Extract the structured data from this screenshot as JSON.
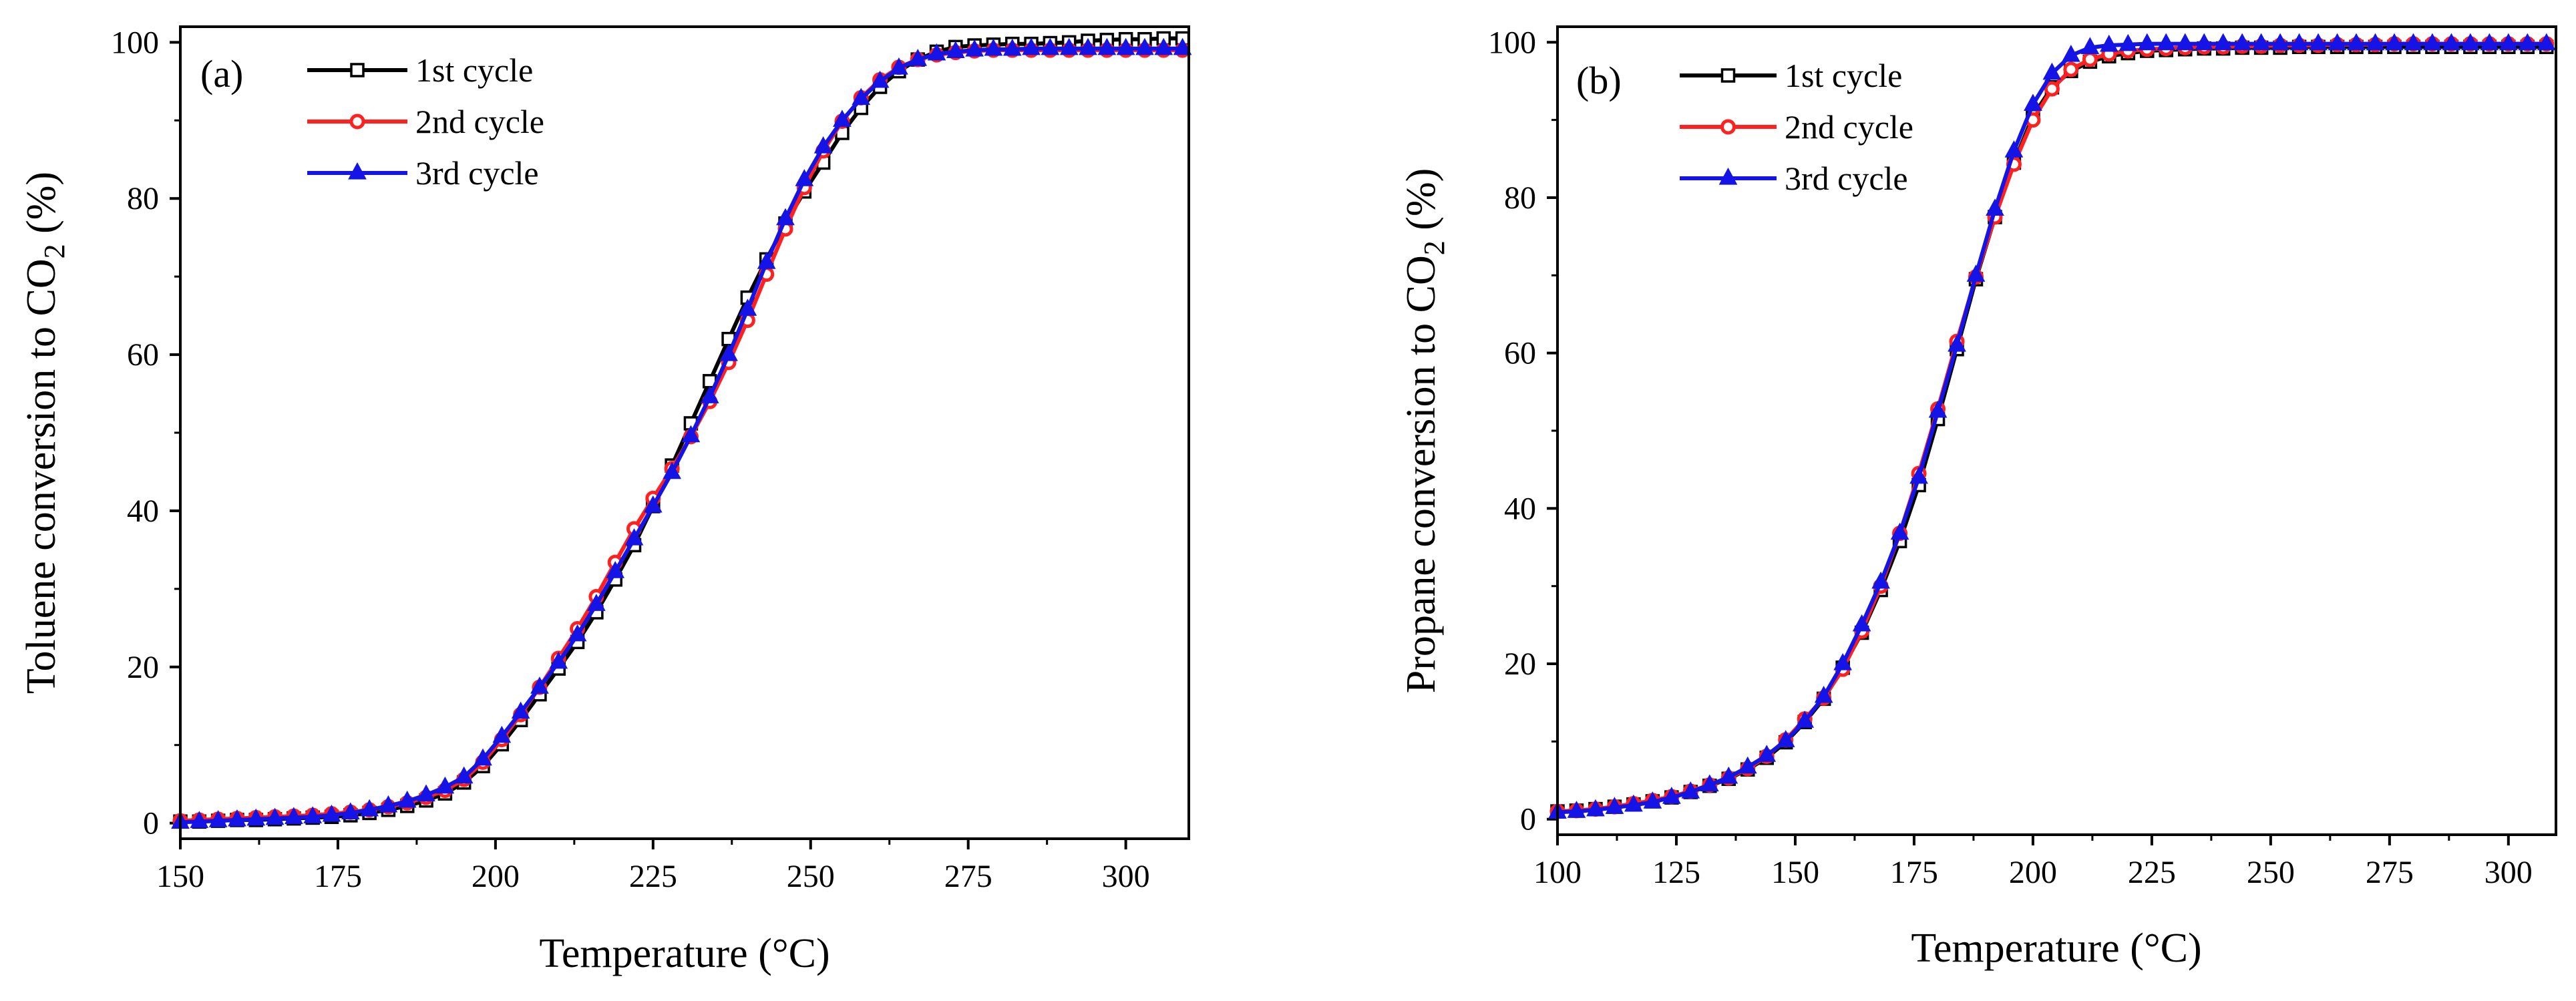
{
  "chart_data": [
    {
      "type": "line",
      "panel_label": "(a)",
      "xlabel": "Temperature (°C)",
      "ylabel_prefix": "Toluene conversion to CO",
      "ylabel_subscript": "2",
      "ylabel_suffix": " (%)",
      "xlim": [
        150,
        310
      ],
      "ylim": [
        -2,
        102
      ],
      "xticks": [
        150,
        175,
        200,
        225,
        250,
        275,
        300
      ],
      "yticks": [
        0,
        20,
        40,
        60,
        80,
        100
      ],
      "legend_position": "top-left",
      "series": [
        {
          "name": "1st cycle",
          "color": "#000000",
          "marker": "square-open",
          "x": [
            150,
            153,
            156,
            159,
            162,
            165,
            168,
            171,
            174,
            177,
            180,
            183,
            186,
            189,
            192,
            195,
            198,
            201,
            204,
            207,
            210,
            213,
            216,
            219,
            222,
            225,
            228,
            231,
            234,
            237,
            240,
            243,
            246,
            249,
            252,
            255,
            258,
            261,
            264,
            267,
            270,
            273,
            276,
            279,
            282,
            285,
            288,
            291,
            294,
            297,
            300,
            303,
            306,
            309
          ],
          "y": [
            0.2,
            0.2,
            0.3,
            0.4,
            0.4,
            0.5,
            0.6,
            0.7,
            0.8,
            1.0,
            1.3,
            1.7,
            2.2,
            2.9,
            3.8,
            5.2,
            7.3,
            10.1,
            13.2,
            16.5,
            19.8,
            23.2,
            27.0,
            31.2,
            35.6,
            40.6,
            45.8,
            51.2,
            56.6,
            62.0,
            67.3,
            72.2,
            76.8,
            80.9,
            84.6,
            88.4,
            91.6,
            94.3,
            96.3,
            97.8,
            98.8,
            99.4,
            99.6,
            99.7,
            99.8,
            99.8,
            99.9,
            100.0,
            100.2,
            100.3,
            100.4,
            100.4,
            100.5,
            100.5
          ]
        },
        {
          "name": "2nd cycle",
          "color": "#FF2020",
          "marker": "circle",
          "x": [
            150,
            153,
            156,
            159,
            162,
            165,
            168,
            171,
            174,
            177,
            180,
            183,
            186,
            189,
            192,
            195,
            198,
            201,
            204,
            207,
            210,
            213,
            216,
            219,
            222,
            225,
            228,
            231,
            234,
            237,
            240,
            243,
            246,
            249,
            252,
            255,
            258,
            261,
            264,
            267,
            270,
            273,
            276,
            279,
            282,
            285,
            288,
            291,
            294,
            297,
            300,
            303,
            306,
            309
          ],
          "y": [
            0.3,
            0.4,
            0.5,
            0.6,
            0.7,
            0.8,
            0.9,
            1.0,
            1.2,
            1.4,
            1.7,
            2.1,
            2.6,
            3.3,
            4.2,
            5.6,
            7.8,
            10.7,
            13.9,
            17.4,
            21.1,
            24.9,
            29.0,
            33.4,
            37.7,
            41.6,
            45.4,
            49.5,
            54.0,
            59.0,
            64.4,
            70.3,
            76.1,
            81.4,
            86.1,
            89.9,
            92.9,
            95.2,
            96.8,
            97.8,
            98.4,
            98.7,
            98.9,
            99.0,
            99.0,
            99.0,
            99.0,
            99.0,
            99.0,
            99.0,
            99.0,
            99.0,
            99.0,
            99.0
          ]
        },
        {
          "name": "3rd cycle",
          "color": "#1414E6",
          "marker": "triangle",
          "x": [
            150,
            153,
            156,
            159,
            162,
            165,
            168,
            171,
            174,
            177,
            180,
            183,
            186,
            189,
            192,
            195,
            198,
            201,
            204,
            207,
            210,
            213,
            216,
            219,
            222,
            225,
            228,
            231,
            234,
            237,
            240,
            243,
            246,
            249,
            252,
            255,
            258,
            261,
            264,
            267,
            270,
            273,
            276,
            279,
            282,
            285,
            288,
            291,
            294,
            297,
            300,
            303,
            306,
            309
          ],
          "y": [
            0.1,
            0.2,
            0.3,
            0.4,
            0.5,
            0.6,
            0.7,
            0.8,
            1.0,
            1.3,
            1.7,
            2.2,
            2.8,
            3.6,
            4.6,
            5.9,
            8.2,
            11.1,
            14.2,
            17.4,
            20.6,
            24.1,
            28.0,
            32.2,
            36.4,
            40.6,
            44.9,
            49.6,
            54.6,
            60.0,
            65.8,
            71.8,
            77.4,
            82.4,
            86.6,
            90.0,
            92.8,
            95.0,
            96.7,
            97.8,
            98.5,
            98.8,
            99.0,
            99.1,
            99.1,
            99.2,
            99.2,
            99.2,
            99.2,
            99.2,
            99.2,
            99.2,
            99.2,
            99.2
          ]
        }
      ]
    },
    {
      "type": "line",
      "panel_label": "(b)",
      "xlabel": "Temperature (°C)",
      "ylabel_prefix": "Propane conversion to CO",
      "ylabel_subscript": "2",
      "ylabel_suffix": " (%)",
      "xlim": [
        100,
        310
      ],
      "ylim": [
        -2,
        102
      ],
      "xticks": [
        100,
        125,
        150,
        175,
        200,
        225,
        250,
        275,
        300
      ],
      "yticks": [
        0,
        20,
        40,
        60,
        80,
        100
      ],
      "legend_position": "top-left",
      "series": [
        {
          "name": "1st cycle",
          "color": "#000000",
          "marker": "square-open",
          "x": [
            100,
            104,
            108,
            112,
            116,
            120,
            124,
            128,
            132,
            136,
            140,
            144,
            148,
            152,
            156,
            160,
            164,
            168,
            172,
            176,
            180,
            184,
            188,
            192,
            196,
            200,
            204,
            208,
            212,
            216,
            220,
            224,
            228,
            232,
            236,
            240,
            244,
            248,
            252,
            256,
            260,
            264,
            268,
            272,
            276,
            280,
            284,
            288,
            292,
            296,
            300,
            304,
            308
          ],
          "y": [
            1.0,
            1.1,
            1.3,
            1.6,
            1.9,
            2.3,
            2.8,
            3.5,
            4.3,
            5.2,
            6.4,
            7.9,
            9.9,
            12.5,
            15.5,
            19.5,
            24.0,
            29.5,
            35.8,
            43.0,
            51.5,
            60.5,
            69.5,
            77.5,
            84.5,
            90.5,
            94.2,
            96.3,
            97.5,
            98.2,
            98.6,
            98.9,
            99.0,
            99.1,
            99.2,
            99.2,
            99.3,
            99.3,
            99.3,
            99.4,
            99.4,
            99.4,
            99.4,
            99.4,
            99.4,
            99.4,
            99.4,
            99.4,
            99.4,
            99.4,
            99.4,
            99.4,
            99.4
          ]
        },
        {
          "name": "2nd cycle",
          "color": "#FF2020",
          "marker": "circle",
          "x": [
            100,
            104,
            108,
            112,
            116,
            120,
            124,
            128,
            132,
            136,
            140,
            144,
            148,
            152,
            156,
            160,
            164,
            168,
            172,
            176,
            180,
            184,
            188,
            192,
            196,
            200,
            204,
            208,
            212,
            216,
            220,
            224,
            228,
            232,
            236,
            240,
            244,
            248,
            252,
            256,
            260,
            264,
            268,
            272,
            276,
            280,
            284,
            288,
            292,
            296,
            300,
            304,
            308
          ],
          "y": [
            1.0,
            1.1,
            1.3,
            1.6,
            2.0,
            2.4,
            2.9,
            3.6,
            4.4,
            5.3,
            6.5,
            8.1,
            10.2,
            12.9,
            15.6,
            19.3,
            24.2,
            30.0,
            36.8,
            44.5,
            52.8,
            61.5,
            69.8,
            77.5,
            84.3,
            90.0,
            94.0,
            96.5,
            97.8,
            98.5,
            98.9,
            99.1,
            99.2,
            99.3,
            99.4,
            99.4,
            99.5,
            99.5,
            99.6,
            99.6,
            99.6,
            99.7,
            99.7,
            99.7,
            99.8,
            99.8,
            99.8,
            99.8,
            99.8,
            99.8,
            99.8,
            99.8,
            99.8
          ]
        },
        {
          "name": "3rd cycle",
          "color": "#1414E6",
          "marker": "triangle",
          "x": [
            100,
            104,
            108,
            112,
            116,
            120,
            124,
            128,
            132,
            136,
            140,
            144,
            148,
            152,
            156,
            160,
            164,
            168,
            172,
            176,
            180,
            184,
            188,
            192,
            196,
            200,
            204,
            208,
            212,
            216,
            220,
            224,
            228,
            232,
            236,
            240,
            244,
            248,
            252,
            256,
            260,
            264,
            268,
            272,
            276,
            280,
            284,
            288,
            292,
            296,
            300,
            304,
            308
          ],
          "y": [
            0.9,
            1.0,
            1.2,
            1.5,
            1.8,
            2.2,
            2.8,
            3.5,
            4.4,
            5.4,
            6.7,
            8.2,
            10.1,
            12.6,
            15.8,
            20.0,
            25.0,
            30.5,
            36.8,
            44.0,
            52.5,
            61.0,
            70.0,
            78.5,
            86.0,
            92.0,
            96.0,
            98.3,
            99.3,
            99.6,
            99.7,
            99.8,
            99.8,
            99.8,
            99.8,
            99.8,
            99.8,
            99.8,
            99.8,
            99.8,
            99.8,
            99.8,
            99.8,
            99.8,
            99.8,
            99.8,
            99.8,
            99.8,
            99.8,
            99.8,
            99.8,
            99.8,
            99.8
          ]
        }
      ]
    }
  ]
}
